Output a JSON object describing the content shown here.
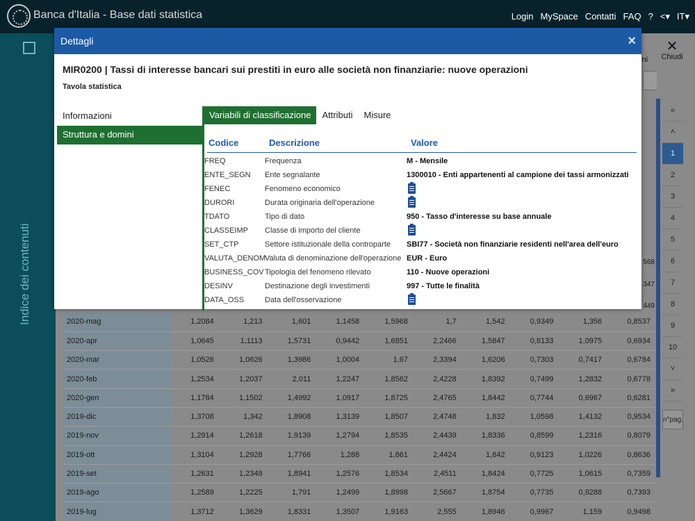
{
  "app": {
    "title": "Banca d'Italia - Base dati statistica",
    "nav": [
      "Login",
      "MySpace",
      "Contatti",
      "FAQ",
      "?",
      "<▾",
      "IT▾"
    ],
    "sidebar_label": "Indice dei contenuti"
  },
  "background": {
    "close_label": "Chiudi",
    "partial_label": "ioni",
    "pager": [
      "«",
      "˄",
      "1",
      "2",
      "3",
      "4",
      "5",
      "6",
      "7",
      "8",
      "9",
      "10",
      "˅",
      "»"
    ],
    "pager_active": "1",
    "page_size_label": "n°pag.",
    "right_partial_numbers": [
      "568",
      "347",
      "449"
    ],
    "table_rows": [
      {
        "date": "2020-mag",
        "values": [
          "1,2084",
          "1,213",
          "1,601",
          "1,1458",
          "1,5968",
          "1,7",
          "1,542",
          "0,9349",
          "1,356",
          "0,8537"
        ]
      },
      {
        "date": "2020-apr",
        "values": [
          "1,0645",
          "1,1113",
          "1,5731",
          "0,9442",
          "1,6851",
          "2,2466",
          "1,5847",
          "0,8133",
          "1,0975",
          "0,6934"
        ]
      },
      {
        "date": "2020-mar",
        "values": [
          "1,0526",
          "1,0626",
          "1,3986",
          "1,0004",
          "1,67",
          "2,3394",
          "1,6206",
          "0,7303",
          "0,7417",
          "0,6784"
        ]
      },
      {
        "date": "2020-feb",
        "values": [
          "1,2534",
          "1,2037",
          "2,011",
          "1,2247",
          "1,8562",
          "2,4228",
          "1,8392",
          "0,7499",
          "1,2832",
          "0,6778"
        ]
      },
      {
        "date": "2020-gen",
        "values": [
          "1,1784",
          "1,1502",
          "1,4992",
          "1,0917",
          "1,8725",
          "2,4765",
          "1,8442",
          "0,7744",
          "0,6967",
          "0,6281"
        ]
      },
      {
        "date": "2019-dic",
        "values": [
          "1,3708",
          "1,342",
          "1,8908",
          "1,3139",
          "1,8507",
          "2,4748",
          "1,832",
          "1,0598",
          "1,4132",
          "0,9534"
        ]
      },
      {
        "date": "2019-nov",
        "values": [
          "1,2914",
          "1,2618",
          "1,9139",
          "1,2794",
          "1,8535",
          "2,4439",
          "1,8336",
          "0,8599",
          "1,2316",
          "0,8079"
        ]
      },
      {
        "date": "2019-ott",
        "values": [
          "1,3104",
          "1,2928",
          "1,7766",
          "1,288",
          "1,861",
          "2,4424",
          "1,842",
          "0,9123",
          "1,0226",
          "0,8636"
        ]
      },
      {
        "date": "2019-set",
        "values": [
          "1,2631",
          "1,2348",
          "1,8941",
          "1,2576",
          "1,8534",
          "2,4511",
          "1,8424",
          "0,7725",
          "1,0615",
          "0,7359"
        ]
      },
      {
        "date": "2019-ago",
        "values": [
          "1,2589",
          "1,2225",
          "1,791",
          "1,2499",
          "1,8998",
          "2,5667",
          "1,8754",
          "0,7735",
          "0,9288",
          "0,7393"
        ]
      },
      {
        "date": "2019-lug",
        "values": [
          "1,3712",
          "1,3629",
          "1,8331",
          "1,3507",
          "1,9163",
          "2,555",
          "1,8946",
          "0,9967",
          "1,159",
          "0,9498"
        ]
      }
    ]
  },
  "modal": {
    "header_title": "Dettagli",
    "close_glyph": "×",
    "dataset_title": "MIR0200 | Tassi di interesse bancari sui prestiti in euro alle società non finanziarie: nuove operazioni",
    "dataset_subtitle": "Tavola statistica",
    "left_menu": [
      {
        "label": "Informazioni",
        "active": false
      },
      {
        "label": "Struttura e domini",
        "active": true
      }
    ],
    "tabs": [
      {
        "label": "Variabili di classificazione",
        "active": true
      },
      {
        "label": "Attributi",
        "active": false
      },
      {
        "label": "Misure",
        "active": false
      }
    ],
    "columns": {
      "code": "Codice",
      "description": "Descrizione",
      "value": "Valore"
    },
    "rows": [
      {
        "code": "FREQ",
        "description": "Frequenza",
        "value_code": "M",
        "value_label": "Mensile",
        "icon": false
      },
      {
        "code": "ENTE_SEGN",
        "description": "Ente segnalante",
        "value_code": "1300010",
        "value_label": "Enti appartenenti al campione dei tassi armonizzati",
        "icon": false
      },
      {
        "code": "FENEC",
        "description": "Fenomeno economico",
        "value_code": "",
        "value_label": "",
        "icon": true
      },
      {
        "code": "DURORI",
        "description": "Durata originaria dell'operazione",
        "value_code": "",
        "value_label": "",
        "icon": true
      },
      {
        "code": "TDATO",
        "description": "Tipo di dato",
        "value_code": "950",
        "value_label": "Tasso d'interesse su base annuale",
        "icon": false
      },
      {
        "code": "CLASSEIMP",
        "description": "Classe di importo del cliente",
        "value_code": "",
        "value_label": "",
        "icon": true
      },
      {
        "code": "SET_CTP",
        "description": "Settore istituzionale della controparte",
        "value_code": "SBI77",
        "value_label": "Società non finanziarie residenti nell'area dell'euro",
        "icon": false
      },
      {
        "code": "VALUTA_DENOM",
        "description": "Valuta di denominazione dell'operazione",
        "value_code": "EUR",
        "value_label": "Euro",
        "icon": false
      },
      {
        "code": "BUSINESS_COV",
        "description": "Tipologia del fenomeno rilevato",
        "value_code": "110",
        "value_label": "Nuove operazioni",
        "icon": false
      },
      {
        "code": "DESINV",
        "description": "Destinazione degli investimenti",
        "value_code": "997",
        "value_label": "Tutte le finalità",
        "icon": false
      },
      {
        "code": "DATA_OSS",
        "description": "Data dell'osservazione",
        "value_code": "",
        "value_label": "",
        "icon": true
      }
    ],
    "icon_name": "clipboard-icon"
  }
}
